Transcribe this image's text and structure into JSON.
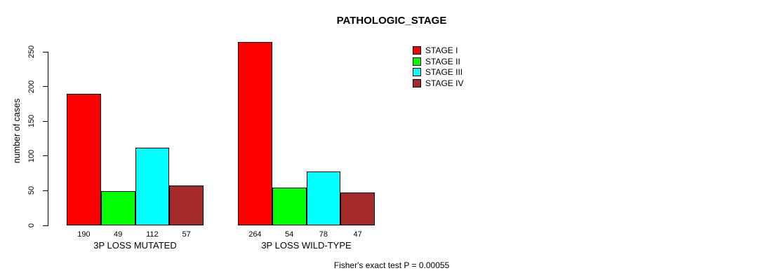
{
  "figure": {
    "background_color": "#FFFFFF",
    "text_color": "#000000",
    "axis_color": "#000000"
  },
  "chart_data": {
    "type": "bar",
    "title": "PATHOLOGIC_STAGE",
    "xlabel": "",
    "ylabel": "number of cases",
    "ylim": [
      0,
      250
    ],
    "yticks": [
      0,
      50,
      100,
      150,
      200,
      250
    ],
    "grid": false,
    "categories": [
      "3P LOSS MUTATED",
      "3P LOSS WILD-TYPE"
    ],
    "series": [
      {
        "name": "STAGE I",
        "color": "#FF0000",
        "values": [
          190,
          264
        ]
      },
      {
        "name": "STAGE II",
        "color": "#00FF00",
        "values": [
          49,
          54
        ]
      },
      {
        "name": "STAGE III",
        "color": "#00FFFF",
        "values": [
          112,
          78
        ]
      },
      {
        "name": "STAGE IV",
        "color": "#A52A2A",
        "values": [
          57,
          47
        ]
      }
    ],
    "bar_value_labels": {
      "3P LOSS MUTATED": [
        190,
        49,
        112,
        57
      ],
      "3P LOSS WILD-TYPE": [
        264,
        54,
        78,
        47
      ]
    },
    "legend_position": "top-right",
    "legend_entries": [
      "STAGE I",
      "STAGE II",
      "STAGE III",
      "STAGE IV"
    ],
    "annotation": "Fisher's exact test P = 0.00055"
  }
}
